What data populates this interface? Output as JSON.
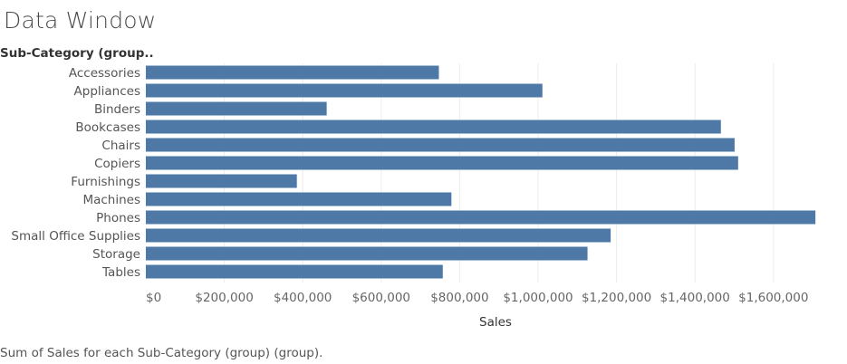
{
  "title": "Data Window",
  "category_header": "Sub-Category (group..",
  "caption": "Sum of Sales for each Sub-Category (group) (group).",
  "colors": {
    "bar": "#4e79a7",
    "grid": "#ececec"
  },
  "chart_data": {
    "type": "bar",
    "orientation": "horizontal",
    "categories": [
      "Accessories",
      "Appliances",
      "Binders",
      "Bookcases",
      "Chairs",
      "Copiers",
      "Furnishings",
      "Machines",
      "Phones",
      "Small Office Supplies",
      "Storage",
      "Tables"
    ],
    "values": [
      747000,
      1011000,
      461000,
      1466000,
      1501000,
      1510000,
      385000,
      779000,
      1707000,
      1185000,
      1126000,
      757000
    ],
    "xlabel": "Sales",
    "ylabel": "Sub-Category (group..",
    "xlim": [
      0,
      1800000
    ],
    "xticks": [
      0,
      200000,
      400000,
      600000,
      800000,
      1000000,
      1200000,
      1400000,
      1600000
    ],
    "xtick_labels": [
      "$0",
      "$200,000",
      "$400,000",
      "$600,000",
      "$800,000",
      "$1,000,000",
      "$1,200,000",
      "$1,400,000",
      "$1,600,000"
    ],
    "grid": true,
    "legend": "none"
  }
}
